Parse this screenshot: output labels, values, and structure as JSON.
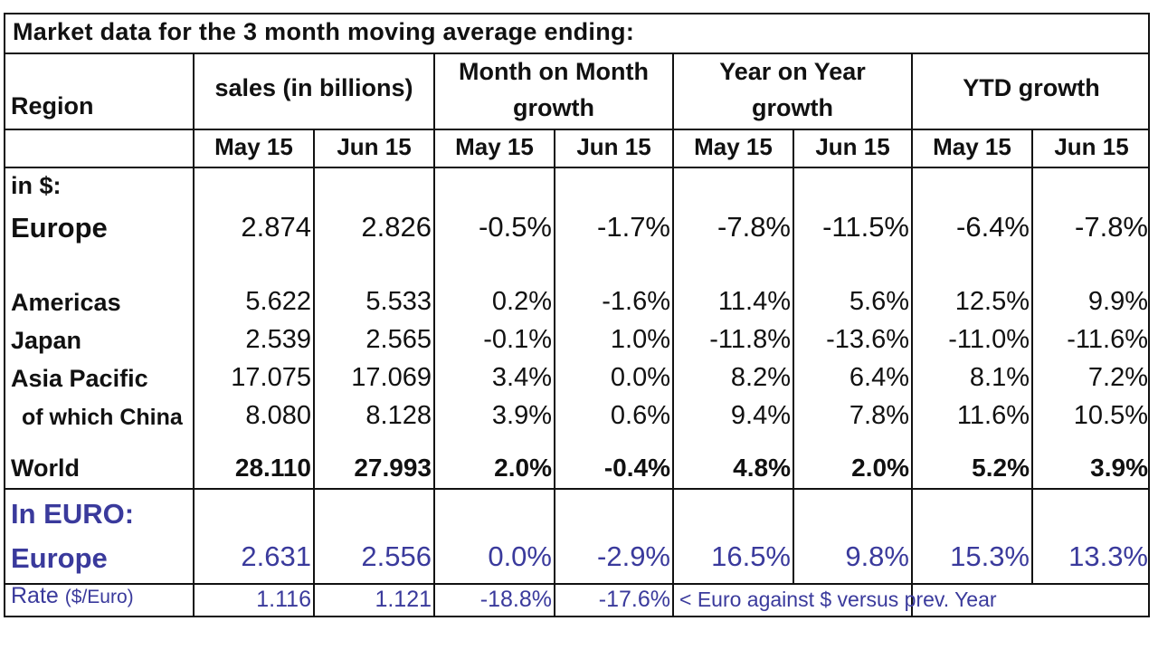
{
  "title": "Market data for the 3 month moving average ending:",
  "headers": {
    "region": "Region",
    "sales": "sales (in billions)",
    "mom_line1": "Month on Month",
    "mom_line2": "growth",
    "yoy_line1": "Year on Year",
    "yoy_line2": "growth",
    "ytd": "YTD growth"
  },
  "subheaders": [
    "May 15",
    "Jun 15",
    "May 15",
    "Jun 15",
    "May 15",
    "Jun 15",
    "May 15",
    "Jun 15"
  ],
  "section_dollar": "in $:",
  "rows": [
    {
      "label": "Europe",
      "values": [
        "2.874",
        "2.826",
        "-0.5%",
        "-1.7%",
        "-7.8%",
        "-11.5%",
        "-6.4%",
        "-7.8%"
      ]
    },
    {
      "label": "Americas",
      "values": [
        "5.622",
        "5.533",
        "0.2%",
        "-1.6%",
        "11.4%",
        "5.6%",
        "12.5%",
        "9.9%"
      ]
    },
    {
      "label": "Japan",
      "values": [
        "2.539",
        "2.565",
        "-0.1%",
        "1.0%",
        "-11.8%",
        "-13.6%",
        "-11.0%",
        "-11.6%"
      ]
    },
    {
      "label": "Asia Pacific",
      "values": [
        "17.075",
        "17.069",
        "3.4%",
        "0.0%",
        "8.2%",
        "6.4%",
        "8.1%",
        "7.2%"
      ]
    },
    {
      "label": "of which China",
      "values": [
        "8.080",
        "8.128",
        "3.9%",
        "0.6%",
        "9.4%",
        "7.8%",
        "11.6%",
        "10.5%"
      ]
    },
    {
      "label": "World",
      "values": [
        "28.110",
        "27.993",
        "2.0%",
        "-0.4%",
        "4.8%",
        "2.0%",
        "5.2%",
        "3.9%"
      ]
    }
  ],
  "section_euro": "In EURO:",
  "euro_row": {
    "label": "Europe",
    "values": [
      "2.631",
      "2.556",
      "0.0%",
      "-2.9%",
      "16.5%",
      "9.8%",
      "15.3%",
      "13.3%"
    ]
  },
  "rate_row": {
    "label": "Rate",
    "unit": "($/Euro)",
    "values": [
      "1.116",
      "1.121",
      "-18.8%",
      "-17.6%"
    ],
    "note": "< Euro against $ versus prev. Year"
  },
  "colors": {
    "blue_text": "#3a3a9c",
    "border": "#111111"
  }
}
